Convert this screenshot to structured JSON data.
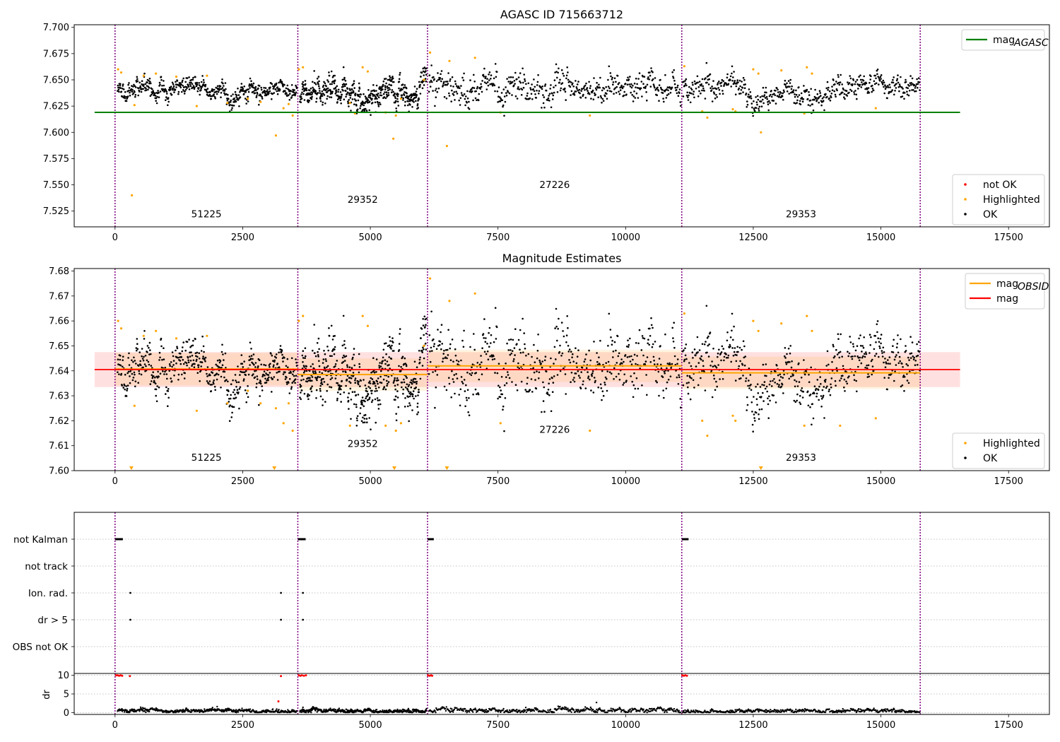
{
  "chart_data": [
    {
      "id": "agasc",
      "type": "scatter",
      "title": "AGASC ID 715663712",
      "xlim": [
        -800,
        18300
      ],
      "ylim": [
        7.51,
        7.7025
      ],
      "x_ticks": [
        0,
        2500,
        5000,
        7500,
        10000,
        12500,
        15000,
        17500
      ],
      "x_tick_labels": [
        "0",
        "2500",
        "5000",
        "7500",
        "10000",
        "12500",
        "15000",
        "17500"
      ],
      "y_ticks": [
        7.525,
        7.55,
        7.575,
        7.6,
        7.625,
        7.65,
        7.675,
        7.7
      ],
      "y_tick_labels": [
        "7.525",
        "7.550",
        "7.575",
        "7.600",
        "7.625",
        "7.650",
        "7.675",
        "7.700"
      ],
      "obs_boundaries": [
        0,
        3580,
        6120,
        11100,
        15770
      ],
      "obs_labels": [
        {
          "text": "51225",
          "x": 1790,
          "y": 7.519
        },
        {
          "text": "29352",
          "x": 4850,
          "y": 7.533
        },
        {
          "text": "27226",
          "x": 8610,
          "y": 7.547
        },
        {
          "text": "29353",
          "x": 13435,
          "y": 7.519
        }
      ],
      "ref_line": {
        "name": "mag_AGASC",
        "value": 7.619,
        "x": [
          -400,
          16550
        ],
        "color": "#008000"
      },
      "legend_top": [
        {
          "label": "mag",
          "sub": "AGASC",
          "color": "#008000"
        }
      ],
      "legend_bottom": [
        {
          "label": "not OK",
          "color": "#ff0000"
        },
        {
          "label": "Highlighted",
          "color": "#ffa500"
        },
        {
          "label": "OK",
          "color": "#000000"
        }
      ],
      "segments": [
        {
          "x0": 50,
          "x1": 3560,
          "mean": 7.6405,
          "spread": 0.0045
        },
        {
          "x0": 3620,
          "x1": 6100,
          "mean": 7.637,
          "spread": 0.0065
        },
        {
          "x0": 6150,
          "x1": 11080,
          "mean": 7.642,
          "spread": 0.0075
        },
        {
          "x0": 11120,
          "x1": 15760,
          "mean": 7.6395,
          "spread": 0.0055
        }
      ],
      "highlighted_points": [
        [
          60,
          7.66
        ],
        [
          120,
          7.657
        ],
        [
          330,
          7.54
        ],
        [
          380,
          7.626
        ],
        [
          560,
          7.654
        ],
        [
          800,
          7.656
        ],
        [
          1200,
          7.653
        ],
        [
          1600,
          7.625
        ],
        [
          1800,
          7.654
        ],
        [
          2200,
          7.628
        ],
        [
          2600,
          7.632
        ],
        [
          2850,
          7.629
        ],
        [
          3150,
          7.597
        ],
        [
          3300,
          7.623
        ],
        [
          3400,
          7.627
        ],
        [
          3480,
          7.616
        ],
        [
          3600,
          7.66
        ],
        [
          3680,
          7.662
        ],
        [
          4600,
          7.628
        ],
        [
          4700,
          7.618
        ],
        [
          4850,
          7.662
        ],
        [
          4950,
          7.658
        ],
        [
          5300,
          7.619
        ],
        [
          5450,
          7.594
        ],
        [
          5500,
          7.616
        ],
        [
          5600,
          7.632
        ],
        [
          6050,
          7.65
        ],
        [
          6170,
          7.676
        ],
        [
          6500,
          7.587
        ],
        [
          6550,
          7.668
        ],
        [
          7050,
          7.671
        ],
        [
          7550,
          7.619
        ],
        [
          9300,
          7.616
        ],
        [
          11150,
          7.663
        ],
        [
          11500,
          7.62
        ],
        [
          11600,
          7.614
        ],
        [
          12100,
          7.622
        ],
        [
          12150,
          7.62
        ],
        [
          12500,
          7.66
        ],
        [
          12600,
          7.656
        ],
        [
          12650,
          7.6
        ],
        [
          13050,
          7.659
        ],
        [
          13500,
          7.618
        ],
        [
          13550,
          7.662
        ],
        [
          13650,
          7.656
        ],
        [
          14900,
          7.623
        ]
      ]
    },
    {
      "id": "estimates",
      "type": "scatter",
      "title": "Magnitude Estimates",
      "xlim": [
        -800,
        18300
      ],
      "ylim": [
        7.6,
        7.681
      ],
      "x_ticks": [
        0,
        2500,
        5000,
        7500,
        10000,
        12500,
        15000,
        17500
      ],
      "x_tick_labels": [
        "0",
        "2500",
        "5000",
        "7500",
        "10000",
        "12500",
        "15000",
        "17500"
      ],
      "y_ticks": [
        7.6,
        7.61,
        7.62,
        7.63,
        7.64,
        7.65,
        7.66,
        7.67,
        7.68
      ],
      "y_tick_labels": [
        "7.60",
        "7.61",
        "7.62",
        "7.63",
        "7.64",
        "7.65",
        "7.66",
        "7.67",
        "7.68"
      ],
      "obs_boundaries": [
        0,
        3580,
        6120,
        11100,
        15770
      ],
      "obs_labels": [
        {
          "text": "51225",
          "x": 1790,
          "y": 7.604
        },
        {
          "text": "29352",
          "x": 4850,
          "y": 7.6095
        },
        {
          "text": "27226",
          "x": 8610,
          "y": 7.6152
        },
        {
          "text": "29353",
          "x": 13435,
          "y": 7.604
        }
      ],
      "mag": {
        "value": 7.6405,
        "band": [
          7.6335,
          7.6475
        ],
        "x": [
          -400,
          16550
        ],
        "color": "#ff0000"
      },
      "mag_obsid": [
        {
          "x0": 0,
          "x1": 3580,
          "value": 7.6407
        },
        {
          "x0": 3580,
          "x1": 6120,
          "value": 7.6385
        },
        {
          "x0": 6120,
          "x1": 11100,
          "value": 7.642
        },
        {
          "x0": 11100,
          "x1": 15770,
          "value": 7.6392
        }
      ],
      "legend_top": [
        {
          "label": "mag",
          "sub": "OBSID",
          "color": "#ffa500"
        },
        {
          "label": "mag",
          "sub": "",
          "color": "#ff0000"
        }
      ],
      "legend_bottom": [
        {
          "label": "Highlighted",
          "color": "#ffa500"
        },
        {
          "label": "OK",
          "color": "#000000"
        }
      ],
      "segments": [
        {
          "x0": 50,
          "x1": 3560,
          "mean": 7.6405,
          "spread": 0.0045
        },
        {
          "x0": 3620,
          "x1": 6100,
          "mean": 7.637,
          "spread": 0.0065
        },
        {
          "x0": 6150,
          "x1": 11080,
          "mean": 7.642,
          "spread": 0.0075
        },
        {
          "x0": 11120,
          "x1": 15760,
          "mean": 7.6395,
          "spread": 0.0055
        }
      ],
      "highlighted_points": [
        [
          60,
          7.66
        ],
        [
          120,
          7.657
        ],
        [
          380,
          7.626
        ],
        [
          560,
          7.654
        ],
        [
          800,
          7.656
        ],
        [
          1200,
          7.653
        ],
        [
          1600,
          7.624
        ],
        [
          1800,
          7.654
        ],
        [
          2200,
          7.627
        ],
        [
          2600,
          7.632
        ],
        [
          2850,
          7.627
        ],
        [
          3150,
          7.625
        ],
        [
          3300,
          7.619
        ],
        [
          3400,
          7.627
        ],
        [
          3480,
          7.616
        ],
        [
          3600,
          7.66
        ],
        [
          3680,
          7.662
        ],
        [
          4600,
          7.618
        ],
        [
          4850,
          7.662
        ],
        [
          4950,
          7.658
        ],
        [
          5300,
          7.618
        ],
        [
          5500,
          7.616
        ],
        [
          5600,
          7.619
        ],
        [
          6050,
          7.65
        ],
        [
          6170,
          7.677
        ],
        [
          6550,
          7.668
        ],
        [
          7050,
          7.671
        ],
        [
          7550,
          7.619
        ],
        [
          9300,
          7.616
        ],
        [
          11150,
          7.663
        ],
        [
          11500,
          7.62
        ],
        [
          11600,
          7.614
        ],
        [
          12100,
          7.622
        ],
        [
          12150,
          7.62
        ],
        [
          12500,
          7.66
        ],
        [
          12600,
          7.656
        ],
        [
          13050,
          7.659
        ],
        [
          13500,
          7.618
        ],
        [
          13550,
          7.662
        ],
        [
          13650,
          7.656
        ],
        [
          14200,
          7.618
        ],
        [
          14900,
          7.621
        ]
      ],
      "clipped_points": [
        320,
        3120,
        5470,
        6500,
        12650
      ]
    },
    {
      "id": "flags",
      "type": "scatter",
      "xlim": [
        -800,
        18300
      ],
      "categories": [
        "not Kalman",
        "not track",
        "Ion. rad.",
        "dr > 5",
        "OBS not OK"
      ],
      "obs_boundaries": [
        0,
        3580,
        6120,
        11100,
        15770
      ],
      "flag_points": {
        "not Kalman": [
          [
            0,
            70
          ],
          [
            3580,
            70
          ],
          [
            6120,
            40
          ],
          [
            11100,
            50
          ]
        ],
        "not track": [],
        "Ion. rad.": [
          [
            300,
            0
          ],
          [
            3250,
            0
          ],
          [
            3680,
            0
          ]
        ],
        "dr > 5": [
          [
            300,
            0
          ],
          [
            3250,
            0
          ],
          [
            3680,
            0
          ]
        ],
        "OBS not OK": []
      }
    },
    {
      "id": "dr",
      "type": "scatter",
      "ylabel": "dr",
      "xlim": [
        -800,
        18300
      ],
      "ylim": [
        -0.5,
        10.5
      ],
      "x_ticks": [
        0,
        2500,
        5000,
        7500,
        10000,
        12500,
        15000,
        17500
      ],
      "x_tick_labels": [
        "0",
        "2500",
        "5000",
        "7500",
        "10000",
        "12500",
        "15000",
        "17500"
      ],
      "y_ticks": [
        0,
        5,
        10
      ],
      "y_tick_labels": [
        "0",
        "5",
        "10"
      ],
      "obs_boundaries": [
        0,
        3580,
        6120,
        11100,
        15770
      ],
      "red_points": [
        [
          20,
          10
        ],
        [
          50,
          10
        ],
        [
          80,
          9.9
        ],
        [
          110,
          10
        ],
        [
          140,
          9.9
        ],
        [
          290,
          9.8
        ],
        [
          3250,
          9.8
        ],
        [
          3200,
          3.0
        ],
        [
          3600,
          10
        ],
        [
          3630,
          9.9
        ],
        [
          3660,
          10
        ],
        [
          3700,
          9.9
        ],
        [
          3740,
          10
        ],
        [
          6130,
          10
        ],
        [
          6160,
          9.9
        ],
        [
          6190,
          10
        ],
        [
          6210,
          9.9
        ],
        [
          11110,
          10
        ],
        [
          11140,
          9.9
        ],
        [
          11170,
          10
        ],
        [
          11200,
          9.9
        ]
      ],
      "outliers": [
        [
          2000,
          1.6
        ],
        [
          9430,
          2.7
        ],
        [
          3680,
          1.4
        ]
      ],
      "segments": [
        {
          "x0": 50,
          "x1": 3560,
          "mean": 0.4,
          "spread": 0.25
        },
        {
          "x0": 3620,
          "x1": 6100,
          "mean": 0.45,
          "spread": 0.28
        },
        {
          "x0": 6150,
          "x1": 11080,
          "mean": 0.6,
          "spread": 0.35
        },
        {
          "x0": 11120,
          "x1": 15760,
          "mean": 0.4,
          "spread": 0.25
        }
      ]
    }
  ]
}
